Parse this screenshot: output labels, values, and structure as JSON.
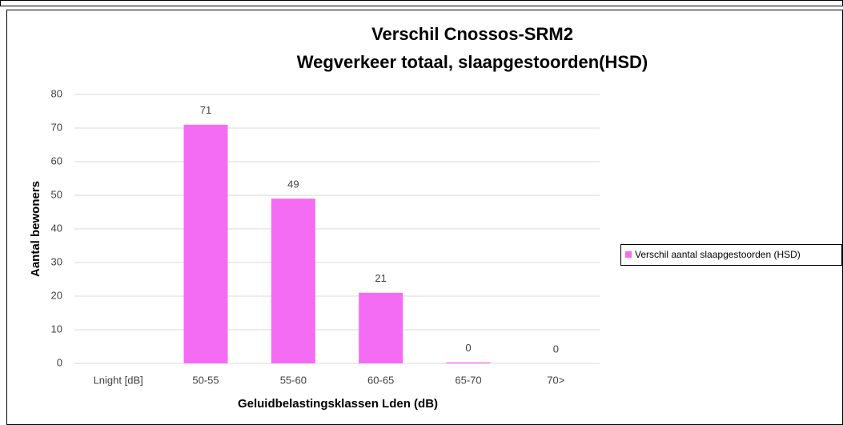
{
  "chart_data": {
    "type": "bar",
    "title": "Verschil Cnossos-SRM2",
    "subtitle": "Wegverkeer totaal, slaapgestoorden(HSD)",
    "x_label": "Geluidbelastingsklassen Lden (dB)",
    "y_label": "Aantal bewoners",
    "categories": [
      "Lnight [dB]",
      "50-55",
      "55-60",
      "60-65",
      "65-70",
      "70>"
    ],
    "series": [
      {
        "name": "Verschil aantal slaapgestoorden (HSD)",
        "color": "#f46cf4",
        "values": [
          null,
          71,
          49,
          21,
          0.3,
          0
        ],
        "value_labels": [
          null,
          "71",
          "49",
          "21",
          "0",
          "0"
        ]
      }
    ],
    "ylim": [
      0,
      80
    ],
    "yticks": [
      0,
      10,
      20,
      30,
      40,
      50,
      60,
      70,
      80
    ],
    "grid": true,
    "legend": "right"
  }
}
